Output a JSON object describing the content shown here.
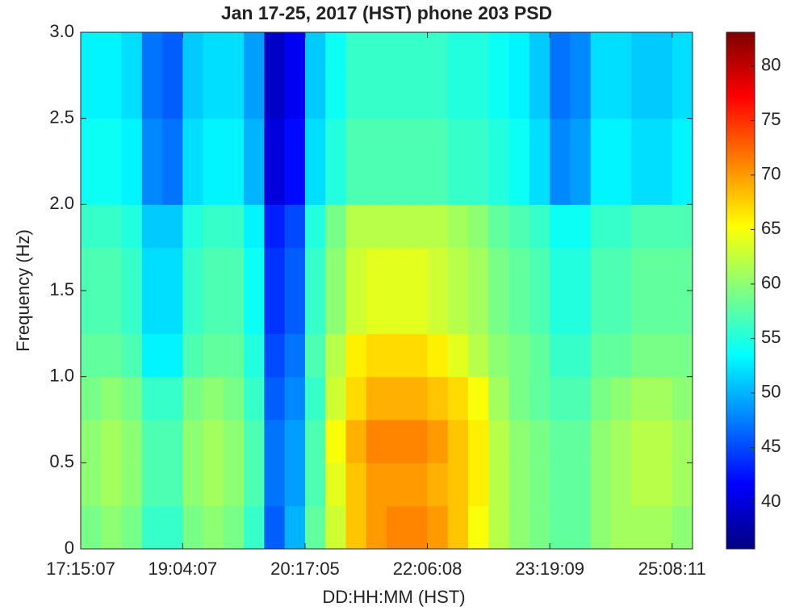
{
  "chart_data": {
    "type": "heatmap",
    "title": "Jan 17-25, 2017 (HST) phone 203 PSD",
    "xlabel": "DD:HH:MM (HST)",
    "ylabel": "Frequency (Hz)",
    "x": [
      "17:15:07",
      null,
      null,
      null,
      null,
      "19:04:07",
      null,
      null,
      null,
      null,
      null,
      "20:17:05",
      null,
      null,
      null,
      null,
      null,
      "22:06:08",
      null,
      null,
      null,
      null,
      null,
      "23:19:09",
      null,
      null,
      null,
      null,
      null,
      "25:08:11"
    ],
    "ybins": [
      0,
      0.25,
      0.5,
      0.75,
      1,
      1.25,
      1.5,
      1.75,
      2,
      2.25,
      2.5,
      2.75,
      3
    ],
    "ylim": [
      0,
      3
    ],
    "yticks": [
      0,
      0.5,
      {
        "value": 1,
        "label": "1.0"
      },
      1.5,
      {
        "value": 2,
        "label": "2.0"
      },
      2.5,
      {
        "value": 3,
        "label": "3.0"
      }
    ],
    "values": [
      [
        59,
        60,
        59,
        56,
        56,
        59,
        60,
        59,
        56,
        46,
        50,
        58,
        63,
        68,
        70,
        71,
        71,
        70,
        68,
        65,
        62,
        60,
        59,
        58,
        58,
        60,
        61,
        61,
        61,
        60
      ],
      [
        60,
        61,
        60,
        57,
        57,
        60,
        61,
        60,
        57,
        47,
        49,
        57,
        64,
        68,
        70,
        70,
        70,
        69,
        68,
        66,
        62,
        60,
        59,
        58,
        58,
        60,
        61,
        62,
        62,
        61
      ],
      [
        60,
        61,
        60,
        57,
        57,
        60,
        61,
        60,
        57,
        47,
        49,
        57,
        65,
        69,
        71,
        71,
        71,
        70,
        68,
        66,
        62,
        60,
        59,
        58,
        58,
        60,
        61,
        62,
        62,
        61
      ],
      [
        59,
        60,
        59,
        56,
        56,
        59,
        60,
        59,
        56,
        46,
        48,
        56,
        63,
        67,
        69,
        69,
        69,
        68,
        67,
        65,
        61,
        59,
        58,
        57,
        57,
        59,
        60,
        61,
        61,
        60
      ],
      [
        58,
        58,
        57,
        53,
        53,
        57,
        58,
        58,
        55,
        45,
        47,
        57,
        62,
        66,
        67,
        67,
        67,
        66,
        64,
        62,
        60,
        59,
        58,
        56,
        56,
        58,
        58,
        59,
        59,
        59
      ],
      [
        57,
        57,
        56,
        52,
        52,
        56,
        57,
        57,
        54,
        44,
        46,
        56,
        60,
        63,
        64,
        64,
        64,
        63,
        62,
        61,
        59,
        58,
        57,
        55,
        55,
        57,
        57,
        58,
        58,
        58
      ],
      [
        57,
        57,
        56,
        52,
        52,
        56,
        57,
        57,
        54,
        44,
        46,
        56,
        60,
        63,
        64,
        64,
        64,
        63,
        62,
        61,
        59,
        58,
        57,
        55,
        55,
        57,
        57,
        58,
        58,
        58
      ],
      [
        56,
        56,
        55,
        51,
        51,
        55,
        56,
        56,
        53,
        43,
        45,
        55,
        59,
        62,
        62,
        62,
        62,
        62,
        61,
        60,
        58,
        57,
        56,
        54,
        54,
        56,
        56,
        57,
        57,
        57
      ],
      [
        54,
        54,
        53,
        48,
        47,
        52,
        53,
        53,
        50,
        40,
        42,
        52,
        55,
        57,
        57,
        57,
        57,
        57,
        56,
        56,
        55,
        54,
        52,
        48,
        49,
        53,
        53,
        52,
        52,
        53
      ],
      [
        54,
        54,
        53,
        48,
        47,
        52,
        53,
        53,
        50,
        40,
        42,
        52,
        55,
        57,
        57,
        57,
        57,
        57,
        56,
        56,
        55,
        54,
        52,
        48,
        49,
        53,
        53,
        52,
        52,
        53
      ],
      [
        53,
        53,
        52,
        47,
        46,
        51,
        52,
        52,
        49,
        39,
        41,
        51,
        54,
        56,
        56,
        56,
        56,
        56,
        55,
        55,
        54,
        53,
        51,
        47,
        48,
        52,
        52,
        51,
        51,
        52
      ],
      [
        53,
        53,
        52,
        47,
        46,
        51,
        52,
        52,
        49,
        39,
        41,
        51,
        54,
        56,
        56,
        56,
        56,
        56,
        55,
        55,
        54,
        53,
        51,
        47,
        48,
        52,
        52,
        51,
        51,
        52
      ]
    ],
    "colormap": "jet",
    "clim": [
      35.7,
      83.1
    ],
    "cticks": [
      40,
      45,
      50,
      55,
      60,
      65,
      70,
      75,
      80
    ]
  }
}
